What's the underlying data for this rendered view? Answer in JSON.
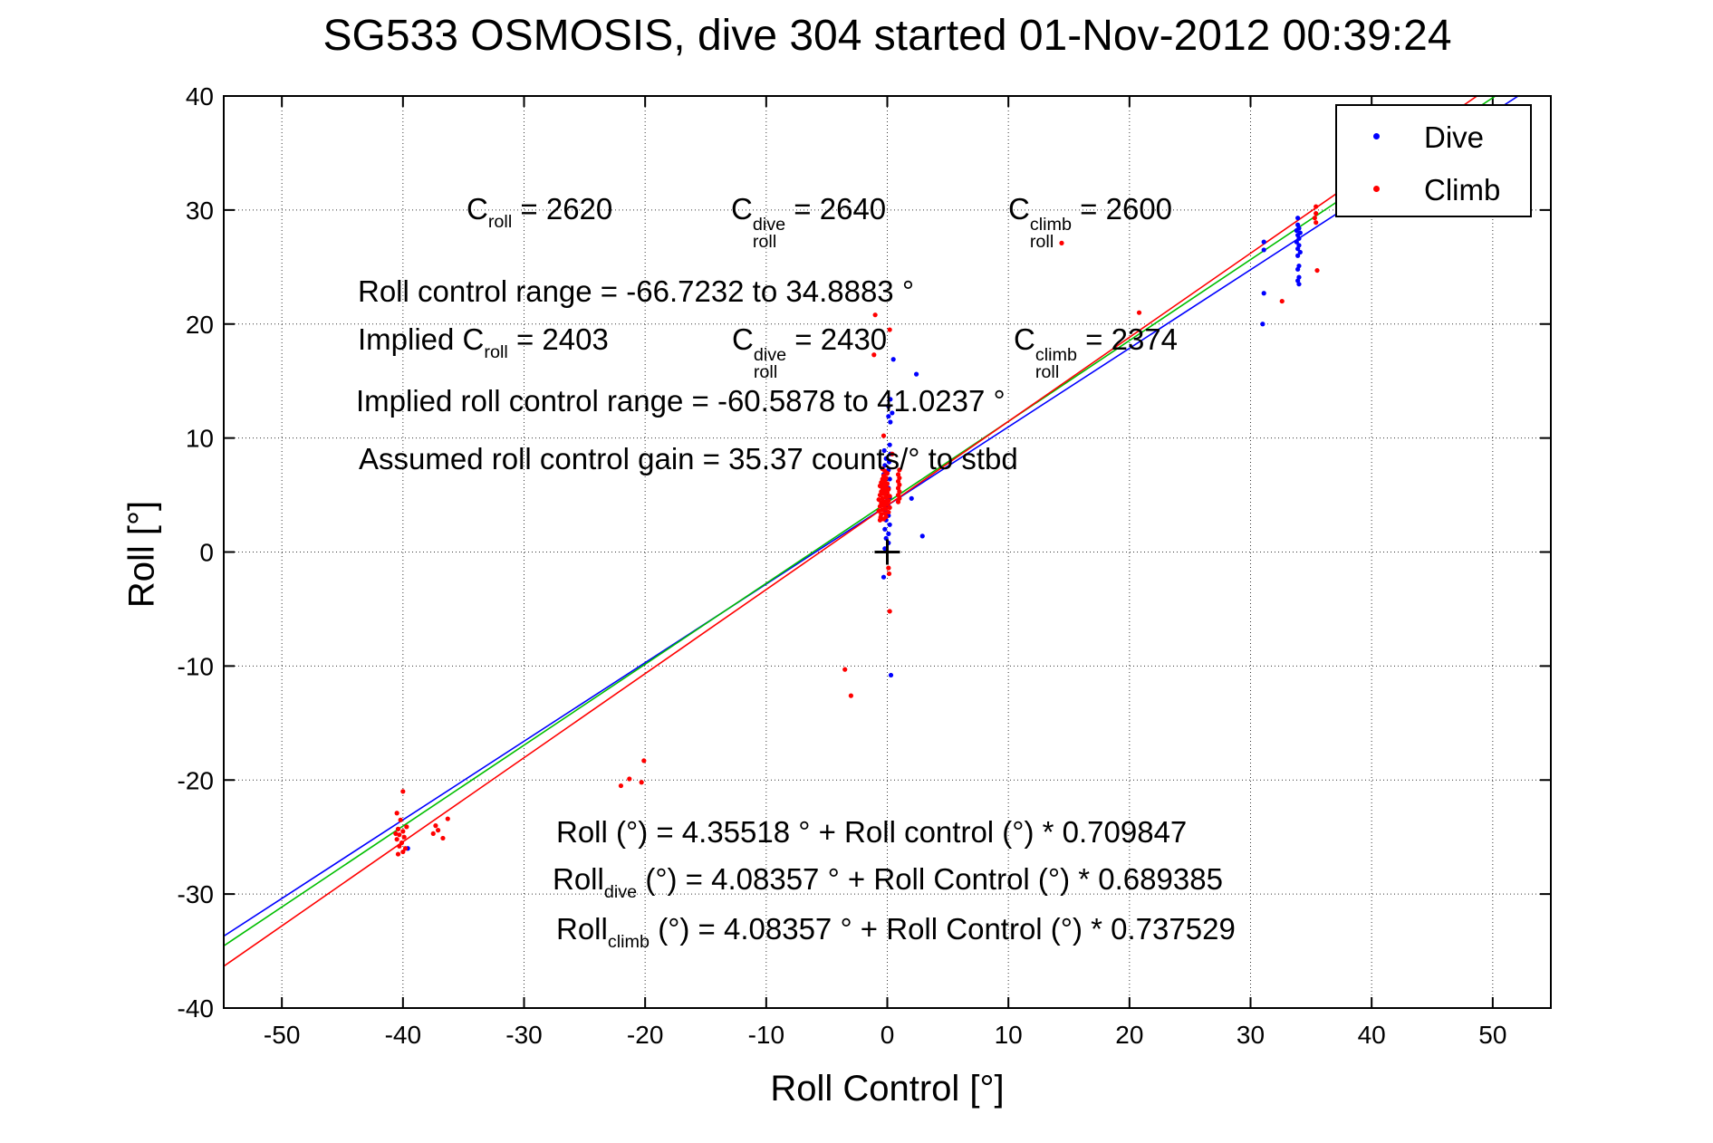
{
  "figure": {
    "title": "SG533 OSMOSIS, dive 304 started 01-Nov-2012 00:39:24"
  },
  "chart_data": {
    "type": "scatter",
    "title": "SG533 OSMOSIS, dive 304 started 01-Nov-2012 00:39:24",
    "xlabel": "Roll Control [°]",
    "ylabel": "Roll [°]",
    "xlim": [
      -54.8,
      54.8
    ],
    "ylim": [
      -40,
      40
    ],
    "x_ticks": [
      -50,
      -40,
      -30,
      -20,
      -10,
      0,
      10,
      20,
      30,
      40,
      50
    ],
    "y_ticks": [
      -40,
      -30,
      -20,
      -10,
      0,
      10,
      20,
      30,
      40
    ],
    "grid": "dotted",
    "legend_position": "top-right",
    "series": [
      {
        "name": "Dive",
        "color": "#0000FF",
        "marker": "dot",
        "points": [
          [
            0.25,
            13.4
          ],
          [
            0.1,
            12.8
          ],
          [
            0.4,
            12.2
          ],
          [
            0.1,
            11.9
          ],
          [
            0.25,
            11.4
          ],
          [
            0.2,
            9.4
          ],
          [
            -0.25,
            8.9
          ],
          [
            0.25,
            8.6
          ],
          [
            -0.1,
            8.2
          ],
          [
            0.15,
            7.9
          ],
          [
            -0.2,
            7.6
          ],
          [
            0.1,
            7.2
          ],
          [
            -0.3,
            6.8
          ],
          [
            0.2,
            6.4
          ],
          [
            -0.1,
            6.0
          ],
          [
            0.1,
            5.6
          ],
          [
            -0.2,
            5.2
          ],
          [
            0.2,
            4.8
          ],
          [
            -0.1,
            4.4
          ],
          [
            0.1,
            4.0
          ],
          [
            -0.2,
            3.6
          ],
          [
            0.1,
            3.2
          ],
          [
            -0.1,
            2.8
          ],
          [
            0.2,
            2.4
          ],
          [
            -0.2,
            2.0
          ],
          [
            0.1,
            1.6
          ],
          [
            -0.1,
            1.2
          ],
          [
            0.1,
            0.8
          ],
          [
            -0.2,
            0.3
          ],
          [
            -0.3,
            -2.2
          ],
          [
            0.3,
            -10.8
          ],
          [
            0.5,
            16.9
          ],
          [
            2.4,
            15.6
          ],
          [
            2.0,
            4.7
          ],
          [
            2.9,
            1.4
          ],
          [
            33.9,
            29.3
          ],
          [
            33.9,
            28.7
          ],
          [
            34.0,
            28.4
          ],
          [
            33.8,
            28.2
          ],
          [
            34.1,
            28.0
          ],
          [
            33.9,
            27.8
          ],
          [
            34.0,
            27.5
          ],
          [
            33.8,
            27.2
          ],
          [
            34.0,
            26.9
          ],
          [
            33.9,
            26.6
          ],
          [
            34.1,
            26.3
          ],
          [
            33.9,
            26.0
          ],
          [
            34.0,
            25.1
          ],
          [
            33.9,
            24.8
          ],
          [
            34.0,
            24.1
          ],
          [
            33.9,
            23.8
          ],
          [
            34.0,
            23.5
          ],
          [
            31.1,
            27.2
          ],
          [
            31.1,
            26.5
          ],
          [
            31.1,
            22.7
          ],
          [
            31.0,
            20.0
          ],
          [
            -39.6,
            -26.0
          ]
        ]
      },
      {
        "name": "Climb",
        "color": "#FF0000",
        "marker": "dot",
        "points": [
          [
            -0.6,
            2.8
          ],
          [
            -0.3,
            2.9
          ],
          [
            -0.1,
            3.1
          ],
          [
            -0.5,
            3.3
          ],
          [
            -0.2,
            3.4
          ],
          [
            0.1,
            3.5
          ],
          [
            -0.7,
            3.6
          ],
          [
            -0.4,
            3.7
          ],
          [
            -0.1,
            3.8
          ],
          [
            0.2,
            3.9
          ],
          [
            -0.6,
            4.0
          ],
          [
            -0.3,
            4.1
          ],
          [
            0.0,
            4.2
          ],
          [
            -0.5,
            4.3
          ],
          [
            -0.2,
            4.4
          ],
          [
            0.1,
            4.5
          ],
          [
            -0.7,
            4.6
          ],
          [
            -0.4,
            4.7
          ],
          [
            -0.1,
            4.8
          ],
          [
            0.2,
            4.9
          ],
          [
            -0.6,
            5.0
          ],
          [
            -0.3,
            5.1
          ],
          [
            0.0,
            5.2
          ],
          [
            -0.5,
            5.3
          ],
          [
            -0.2,
            5.4
          ],
          [
            0.1,
            5.5
          ],
          [
            -0.4,
            5.6
          ],
          [
            -0.1,
            5.7
          ],
          [
            -0.6,
            5.8
          ],
          [
            -0.3,
            5.9
          ],
          [
            0.0,
            6.0
          ],
          [
            -0.5,
            6.1
          ],
          [
            -0.2,
            6.2
          ],
          [
            -0.4,
            6.4
          ],
          [
            -0.1,
            6.5
          ],
          [
            -0.3,
            6.7
          ],
          [
            0.0,
            6.9
          ],
          [
            -0.2,
            7.1
          ],
          [
            -0.4,
            7.3
          ],
          [
            -0.55,
            3.05
          ],
          [
            -0.35,
            4.45
          ],
          [
            -0.15,
            5.15
          ],
          [
            -0.45,
            5.95
          ],
          [
            -0.25,
            6.35
          ],
          [
            0.9,
            4.4
          ],
          [
            1.0,
            4.7
          ],
          [
            0.9,
            5.0
          ],
          [
            1.0,
            5.3
          ],
          [
            0.9,
            5.6
          ],
          [
            1.0,
            5.9
          ],
          [
            0.9,
            6.2
          ],
          [
            1.0,
            6.5
          ],
          [
            0.9,
            6.8
          ],
          [
            1.0,
            7.2
          ],
          [
            -1.0,
            20.8
          ],
          [
            0.2,
            19.5
          ],
          [
            -1.1,
            17.3
          ],
          [
            -0.3,
            10.2
          ],
          [
            0.4,
            8.6
          ],
          [
            0.1,
            -1.4
          ],
          [
            0.15,
            -1.9
          ],
          [
            0.2,
            -5.2
          ],
          [
            -3.5,
            -10.3
          ],
          [
            -3.0,
            -12.6
          ],
          [
            -40.0,
            -21.0
          ],
          [
            -40.5,
            -22.9
          ],
          [
            -40.2,
            -23.5
          ],
          [
            -40.4,
            -24.3
          ],
          [
            -40.0,
            -24.5
          ],
          [
            -40.3,
            -24.8
          ],
          [
            -39.9,
            -25.0
          ],
          [
            -40.5,
            -25.2
          ],
          [
            -40.1,
            -25.5
          ],
          [
            -40.3,
            -25.8
          ],
          [
            -39.8,
            -26.0
          ],
          [
            -40.0,
            -26.3
          ],
          [
            -40.4,
            -26.5
          ],
          [
            -39.7,
            -24.1
          ],
          [
            -40.6,
            -24.7
          ],
          [
            -37.3,
            -24.0
          ],
          [
            -37.1,
            -24.4
          ],
          [
            -37.5,
            -24.7
          ],
          [
            -36.3,
            -23.4
          ],
          [
            -36.7,
            -25.1
          ],
          [
            -22.0,
            -20.5
          ],
          [
            -21.3,
            -19.9
          ],
          [
            -20.3,
            -20.2
          ],
          [
            -20.1,
            -18.3
          ],
          [
            35.4,
            30.3
          ],
          [
            35.4,
            29.7
          ],
          [
            35.3,
            29.3
          ],
          [
            35.4,
            28.9
          ],
          [
            35.5,
            24.7
          ],
          [
            32.6,
            22.0
          ],
          [
            14.4,
            27.1
          ],
          [
            20.8,
            21.0
          ]
        ]
      }
    ],
    "fit_lines": [
      {
        "name": "dive",
        "color": "#0000FF",
        "intercept": 4.08357,
        "slope": 0.689385
      },
      {
        "name": "combined",
        "color": "#00BE00",
        "intercept": 4.35518,
        "slope": 0.709847
      },
      {
        "name": "climb",
        "color": "#FF0000",
        "intercept": 4.08357,
        "slope": 0.737529
      }
    ],
    "origin_marker": {
      "x": 0,
      "y": 0,
      "shape": "plus",
      "color": "#000000"
    }
  },
  "legend": {
    "items": [
      {
        "label": "Dive",
        "color": "#0000FF"
      },
      {
        "label": "Climb",
        "color": "#FF0000"
      }
    ]
  },
  "annotations": {
    "c_roll": {
      "segments": [
        {
          "t": "C"
        },
        {
          "sub": "roll"
        },
        {
          "t": " = 2620"
        }
      ]
    },
    "c_roll_dive": {
      "segments": [
        {
          "t": "C"
        },
        {
          "sup": "dive",
          "sub": "roll"
        },
        {
          "t": " = 2640"
        }
      ]
    },
    "c_roll_climb": {
      "segments": [
        {
          "t": "C"
        },
        {
          "sup": "climb",
          "sub": "roll"
        },
        {
          "t": " = 2600"
        }
      ]
    },
    "roll_control_range": {
      "segments": [
        {
          "t": "Roll control range = -66.7232 to 34.8883 °"
        }
      ]
    },
    "implied_c_roll": {
      "segments": [
        {
          "t": "Implied C"
        },
        {
          "sub": "roll"
        },
        {
          "t": " = 2403"
        }
      ]
    },
    "implied_c_roll_dive": {
      "segments": [
        {
          "t": "C"
        },
        {
          "sup": "dive",
          "sub": "roll"
        },
        {
          "t": " = 2430"
        }
      ]
    },
    "implied_c_roll_climb": {
      "segments": [
        {
          "t": "C"
        },
        {
          "sup": "climb",
          "sub": "roll"
        },
        {
          "t": " = 2374"
        }
      ]
    },
    "implied_roll_control_range": {
      "segments": [
        {
          "t": "Implied roll control range = -60.5878 to 41.0237 °"
        }
      ]
    },
    "assumed_gain": {
      "segments": [
        {
          "t": "Assumed roll control gain = 35.37 counts/° to stbd"
        }
      ]
    },
    "fit_all": {
      "segments": [
        {
          "t": "Roll (°) = 4.35518 ° + Roll control (°) * 0.709847"
        }
      ]
    },
    "fit_dive": {
      "segments": [
        {
          "t": "Roll"
        },
        {
          "sub": "dive"
        },
        {
          "t": " (°) = 4.08357 ° + Roll Control (°) * 0.689385"
        }
      ]
    },
    "fit_climb": {
      "segments": [
        {
          "t": "Roll"
        },
        {
          "sub": "climb"
        },
        {
          "t": " (°) = 4.08357 ° + Roll Control (°) * 0.737529"
        }
      ]
    }
  }
}
